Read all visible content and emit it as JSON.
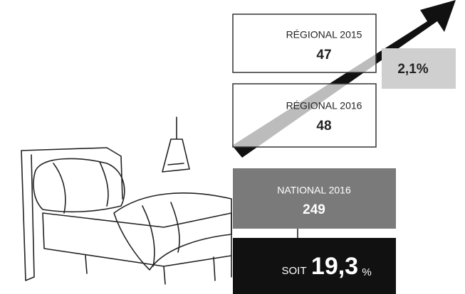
{
  "regional_2015": {
    "label": "RÉGIONAL 2015",
    "value": "47"
  },
  "growth": "2,1%",
  "regional_2016": {
    "label": "RÉGIONAL 2016",
    "value": "48"
  },
  "national_2016": {
    "label": "NATIONAL 2016",
    "value": "249"
  },
  "share": {
    "prefix": "SOIT",
    "value": "19,3",
    "unit": "%"
  }
}
